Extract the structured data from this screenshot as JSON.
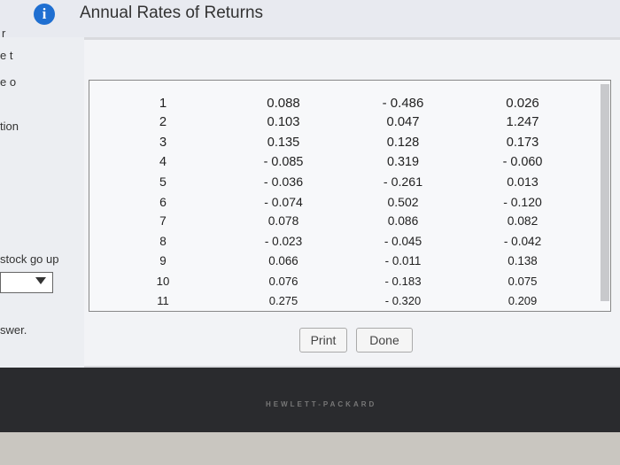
{
  "header": {
    "title": "Annual Rates of Returns"
  },
  "background": {
    "fragments": [
      "r",
      "e t",
      "e o",
      "tion",
      "stock go up",
      "swer."
    ]
  },
  "table": {
    "rows": [
      [
        "1",
        "0.088",
        "- 0.486",
        "0.026"
      ],
      [
        "2",
        "0.103",
        "0.047",
        "1.247"
      ],
      [
        "3",
        "0.135",
        "0.128",
        "0.173"
      ],
      [
        "4",
        "- 0.085",
        "0.319",
        "- 0.060"
      ],
      [
        "5",
        "- 0.036",
        "- 0.261",
        "0.013"
      ],
      [
        "6",
        "- 0.074",
        "0.502",
        "- 0.120"
      ],
      [
        "7",
        "0.078",
        "0.086",
        "0.082"
      ],
      [
        "8",
        "- 0.023",
        "- 0.045",
        "- 0.042"
      ],
      [
        "9",
        "0.066",
        "- 0.011",
        "0.138"
      ],
      [
        "10",
        "0.076",
        "- 0.183",
        "0.075"
      ],
      [
        "11",
        "0.275",
        "- 0.320",
        "0.209"
      ]
    ]
  },
  "buttons": [
    "Print",
    "Done"
  ],
  "device": {
    "brand": "HEWLETT-PACKARD"
  }
}
